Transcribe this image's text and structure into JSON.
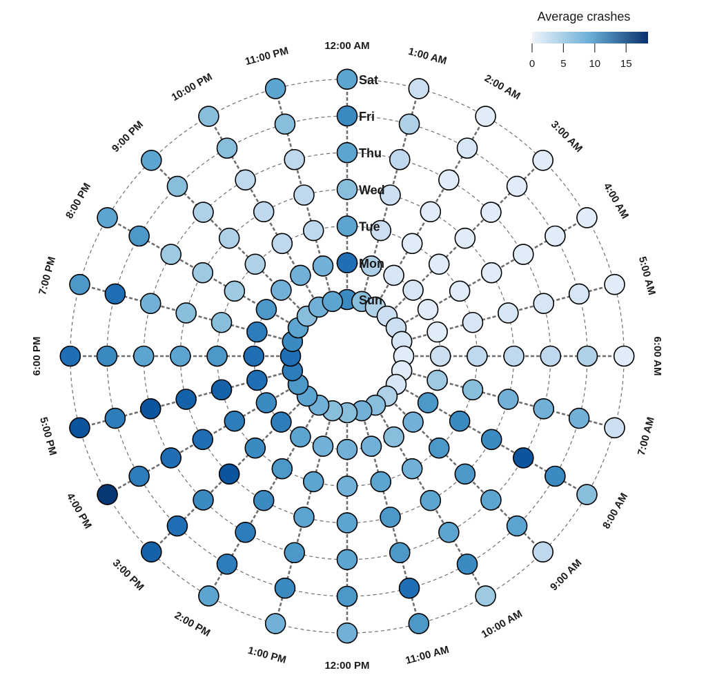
{
  "chart_data": {
    "type": "radial-heatmap",
    "angular_categories": [
      "12:00 AM",
      "1:00 AM",
      "2:00 AM",
      "3:00 AM",
      "4:00 AM",
      "5:00 AM",
      "6:00 AM",
      "7:00 AM",
      "8:00 AM",
      "9:00 AM",
      "10:00 AM",
      "11:00 AM",
      "12:00 PM",
      "1:00 PM",
      "2:00 PM",
      "3:00 PM",
      "4:00 PM",
      "5:00 PM",
      "6:00 PM",
      "7:00 PM",
      "8:00 PM",
      "9:00 PM",
      "10:00 PM",
      "11:00 PM"
    ],
    "radial_categories": [
      "Sun",
      "Mon",
      "Tue",
      "Wed",
      "Thu",
      "Fri",
      "Sat"
    ],
    "series": [
      {
        "name": "Sun",
        "values": [
          12,
          8,
          6,
          4,
          4,
          3,
          2,
          2,
          3,
          6,
          8,
          9,
          8,
          8,
          9,
          10,
          11,
          13,
          14,
          12,
          10,
          8,
          9,
          10
        ]
      },
      {
        "name": "Mon",
        "values": [
          14,
          6,
          3,
          3,
          2,
          2,
          4,
          7,
          11,
          9,
          8,
          9,
          9,
          9,
          10,
          13,
          12,
          14,
          14,
          13,
          11,
          9,
          9,
          9
        ]
      },
      {
        "name": "Tue",
        "values": [
          10,
          4,
          2,
          2,
          2,
          3,
          5,
          8,
          12,
          11,
          9,
          10,
          9,
          10,
          11,
          12,
          13,
          15,
          11,
          8,
          7,
          6,
          5,
          5
        ]
      },
      {
        "name": "Wed",
        "values": [
          8,
          4,
          2,
          2,
          2,
          3,
          5,
          9,
          12,
          11,
          10,
          11,
          10,
          10,
          12,
          16,
          14,
          15,
          10,
          8,
          7,
          6,
          5,
          5
        ]
      },
      {
        "name": "Thu",
        "values": [
          10,
          5,
          2,
          2,
          2,
          3,
          5,
          9,
          16,
          10,
          10,
          11,
          10,
          11,
          13,
          12,
          14,
          16,
          10,
          9,
          7,
          6,
          5,
          5
        ]
      },
      {
        "name": "Fri",
        "values": [
          12,
          6,
          3,
          2,
          2,
          3,
          6,
          9,
          12,
          10,
          12,
          14,
          11,
          12,
          13,
          14,
          13,
          13,
          12,
          14,
          11,
          8,
          8,
          8
        ]
      },
      {
        "name": "Sat",
        "values": [
          10,
          4,
          2,
          2,
          2,
          2,
          2,
          4,
          8,
          5,
          7,
          11,
          9,
          9,
          10,
          15,
          18,
          16,
          14,
          11,
          10,
          10,
          8,
          10
        ]
      }
    ],
    "legend": {
      "title": "Average crashes",
      "ticks": [
        0,
        5,
        10,
        15
      ],
      "range": [
        0,
        18.5
      ],
      "placement": "top-right"
    },
    "colors": {
      "low": "#eef3fa",
      "mid": "#4a94c8",
      "high": "#08306b"
    }
  }
}
